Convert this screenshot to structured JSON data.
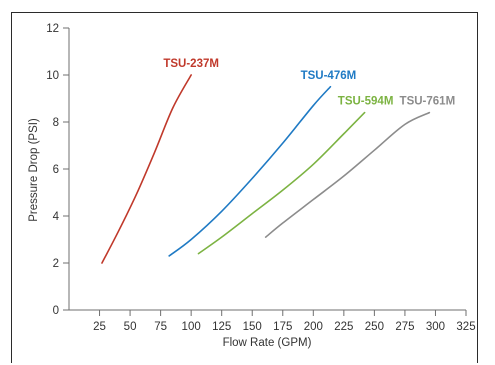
{
  "chart_data": {
    "type": "line",
    "title": "",
    "xlabel": "Flow Rate (GPM)",
    "ylabel": "Pressure Drop (PSI)",
    "xlim": [
      0,
      325
    ],
    "ylim": [
      0,
      12
    ],
    "x_ticks": [
      25,
      50,
      75,
      100,
      125,
      150,
      175,
      200,
      225,
      250,
      275,
      300,
      325
    ],
    "y_ticks": [
      0,
      2,
      4,
      6,
      8,
      10,
      12
    ],
    "grid": false,
    "legend": "none",
    "series": [
      {
        "name": "TSU-237M",
        "color": "#c0392b",
        "x": [
          27,
          40,
          55,
          70,
          85,
          100
        ],
        "y": [
          2.0,
          3.3,
          4.9,
          6.7,
          8.6,
          10.0
        ]
      },
      {
        "name": "TSU-476M",
        "color": "#1f7ac4",
        "x": [
          82,
          100,
          125,
          150,
          175,
          200,
          214
        ],
        "y": [
          2.3,
          3.0,
          4.2,
          5.6,
          7.1,
          8.7,
          9.5
        ]
      },
      {
        "name": "TSU-594M",
        "color": "#7cb342",
        "x": [
          106,
          125,
          150,
          175,
          200,
          225,
          242
        ],
        "y": [
          2.4,
          3.1,
          4.1,
          5.1,
          6.2,
          7.5,
          8.4
        ]
      },
      {
        "name": "TSU-761M",
        "color": "#8c8c8c",
        "x": [
          161,
          175,
          200,
          225,
          250,
          275,
          295
        ],
        "y": [
          3.1,
          3.7,
          4.7,
          5.7,
          6.8,
          7.9,
          8.4
        ]
      }
    ]
  }
}
